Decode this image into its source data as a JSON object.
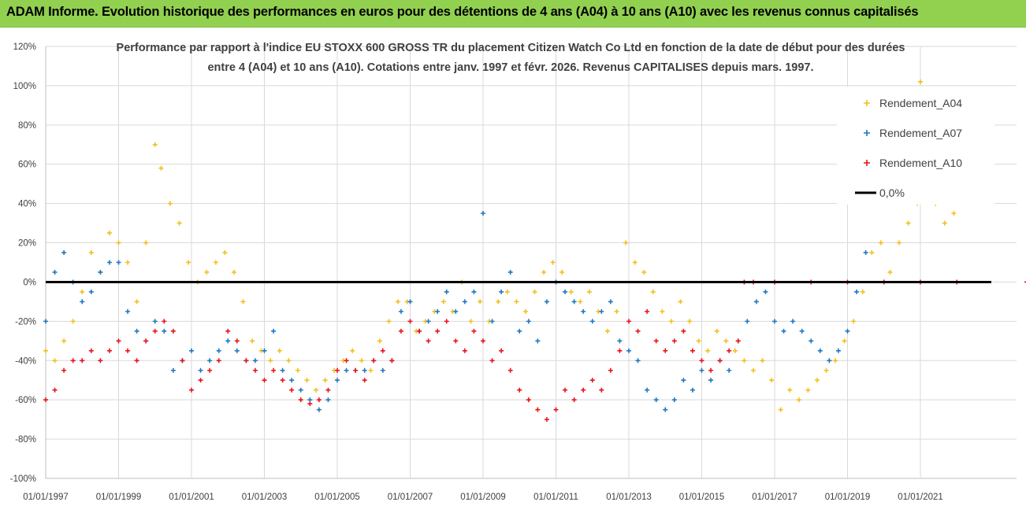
{
  "header": {
    "title": "ADAM Informe. Evolution historique des performances en euros pour des détentions de 4 ans (A04) à 10 ans (A10) avec les revenus connus capitalisés"
  },
  "chart_data": {
    "type": "scatter",
    "title_lines": [
      "Performance par rapport à l'indice EU STOXX 600 GROSS TR  du placement Citizen Watch Co Ltd en fonction de la date de début pour des durées",
      "entre 4 (A04) et 10 ans (A10). Cotations entre janv. 1997 et févr. 2026. Revenus CAPITALISES depuis mars. 1997."
    ],
    "x_ticks": [
      "01/01/1997",
      "01/01/1999",
      "01/01/2001",
      "01/01/2003",
      "01/01/2005",
      "01/01/2007",
      "01/01/2009",
      "01/01/2011",
      "01/01/2013",
      "01/01/2015",
      "01/01/2017",
      "01/01/2019",
      "01/01/2021"
    ],
    "x_range": [
      "1997-01-01",
      "2023-12-31"
    ],
    "y_ticks": [
      "120%",
      "100%",
      "80%",
      "60%",
      "40%",
      "20%",
      "0%",
      "-20%",
      "-40%",
      "-60%",
      "-80%",
      "-100%"
    ],
    "ylim": [
      -100,
      120
    ],
    "legend_position": "top-right",
    "legend": [
      "Rendement_A04",
      "Rendement_A07",
      "Rendement_A10",
      "0,0%"
    ],
    "series": [
      {
        "name": "Rendement_A04",
        "color": "#f2c01d",
        "points": [
          [
            "1997-01",
            -35
          ],
          [
            "1997-04",
            -40
          ],
          [
            "1997-07",
            -30
          ],
          [
            "1997-10",
            -20
          ],
          [
            "1998-01",
            -5
          ],
          [
            "1998-04",
            15
          ],
          [
            "1998-07",
            5
          ],
          [
            "1998-10",
            25
          ],
          [
            "1999-01",
            20
          ],
          [
            "1999-04",
            10
          ],
          [
            "1999-07",
            -10
          ],
          [
            "1999-10",
            20
          ],
          [
            "2000-01",
            70
          ],
          [
            "2000-03",
            58
          ],
          [
            "2000-06",
            40
          ],
          [
            "2000-09",
            30
          ],
          [
            "2000-12",
            10
          ],
          [
            "2001-03",
            0
          ],
          [
            "2001-06",
            5
          ],
          [
            "2001-09",
            10
          ],
          [
            "2001-12",
            15
          ],
          [
            "2002-03",
            5
          ],
          [
            "2002-06",
            -10
          ],
          [
            "2002-09",
            -30
          ],
          [
            "2002-12",
            -35
          ],
          [
            "2003-03",
            -40
          ],
          [
            "2003-06",
            -35
          ],
          [
            "2003-09",
            -40
          ],
          [
            "2003-12",
            -45
          ],
          [
            "2004-03",
            -50
          ],
          [
            "2004-06",
            -55
          ],
          [
            "2004-09",
            -50
          ],
          [
            "2004-12",
            -45
          ],
          [
            "2005-03",
            -40
          ],
          [
            "2005-06",
            -35
          ],
          [
            "2005-09",
            -40
          ],
          [
            "2005-12",
            -45
          ],
          [
            "2006-03",
            -30
          ],
          [
            "2006-06",
            -20
          ],
          [
            "2006-09",
            -10
          ],
          [
            "2006-12",
            -10
          ],
          [
            "2007-03",
            -25
          ],
          [
            "2007-06",
            -20
          ],
          [
            "2007-09",
            -15
          ],
          [
            "2007-12",
            -10
          ],
          [
            "2008-03",
            -15
          ],
          [
            "2008-06",
            0
          ],
          [
            "2008-09",
            -20
          ],
          [
            "2008-12",
            -10
          ],
          [
            "2009-03",
            -20
          ],
          [
            "2009-06",
            -10
          ],
          [
            "2009-09",
            -5
          ],
          [
            "2009-12",
            -10
          ],
          [
            "2010-03",
            -15
          ],
          [
            "2010-06",
            -5
          ],
          [
            "2010-09",
            5
          ],
          [
            "2010-12",
            10
          ],
          [
            "2011-03",
            5
          ],
          [
            "2011-06",
            -5
          ],
          [
            "2011-09",
            -10
          ],
          [
            "2011-12",
            -5
          ],
          [
            "2012-03",
            -15
          ],
          [
            "2012-06",
            -25
          ],
          [
            "2012-09",
            -15
          ],
          [
            "2012-12",
            20
          ],
          [
            "2013-03",
            10
          ],
          [
            "2013-06",
            5
          ],
          [
            "2013-09",
            -5
          ],
          [
            "2013-12",
            -15
          ],
          [
            "2014-03",
            -20
          ],
          [
            "2014-06",
            -10
          ],
          [
            "2014-09",
            -20
          ],
          [
            "2014-12",
            -30
          ],
          [
            "2015-03",
            -35
          ],
          [
            "2015-06",
            -25
          ],
          [
            "2015-09",
            -30
          ],
          [
            "2015-12",
            -35
          ],
          [
            "2016-03",
            -40
          ],
          [
            "2016-06",
            -45
          ],
          [
            "2016-09",
            -40
          ],
          [
            "2016-12",
            -50
          ],
          [
            "2017-03",
            -65
          ],
          [
            "2017-06",
            -55
          ],
          [
            "2017-09",
            -60
          ],
          [
            "2017-12",
            -55
          ],
          [
            "2018-03",
            -50
          ],
          [
            "2018-06",
            -45
          ],
          [
            "2018-09",
            -40
          ],
          [
            "2018-12",
            -30
          ],
          [
            "2019-03",
            -20
          ],
          [
            "2019-06",
            -5
          ],
          [
            "2019-09",
            15
          ],
          [
            "2019-12",
            20
          ],
          [
            "2020-03",
            5
          ],
          [
            "2020-06",
            20
          ],
          [
            "2020-09",
            30
          ],
          [
            "2020-12",
            40
          ],
          [
            "2021-01",
            102
          ],
          [
            "2021-06",
            40
          ],
          [
            "2021-09",
            30
          ],
          [
            "2021-12",
            35
          ]
        ]
      },
      {
        "name": "Rendement_A07",
        "color": "#1f78c1",
        "points": [
          [
            "1997-01",
            -20
          ],
          [
            "1997-04",
            5
          ],
          [
            "1997-07",
            15
          ],
          [
            "1997-10",
            0
          ],
          [
            "1998-01",
            -10
          ],
          [
            "1998-04",
            -5
          ],
          [
            "1998-07",
            5
          ],
          [
            "1998-10",
            10
          ],
          [
            "1999-01",
            10
          ],
          [
            "1999-04",
            -15
          ],
          [
            "1999-07",
            -25
          ],
          [
            "1999-10",
            -30
          ],
          [
            "2000-01",
            -20
          ],
          [
            "2000-04",
            -25
          ],
          [
            "2000-07",
            -45
          ],
          [
            "2000-10",
            -40
          ],
          [
            "2001-01",
            -35
          ],
          [
            "2001-04",
            -45
          ],
          [
            "2001-07",
            -40
          ],
          [
            "2001-10",
            -35
          ],
          [
            "2002-01",
            -30
          ],
          [
            "2002-04",
            -35
          ],
          [
            "2002-07",
            -40
          ],
          [
            "2002-10",
            -40
          ],
          [
            "2003-01",
            -35
          ],
          [
            "2003-04",
            -25
          ],
          [
            "2003-07",
            -45
          ],
          [
            "2003-10",
            -50
          ],
          [
            "2004-01",
            -55
          ],
          [
            "2004-04",
            -60
          ],
          [
            "2004-07",
            -65
          ],
          [
            "2004-10",
            -60
          ],
          [
            "2005-01",
            -50
          ],
          [
            "2005-04",
            -45
          ],
          [
            "2005-07",
            -45
          ],
          [
            "2005-10",
            -45
          ],
          [
            "2006-01",
            -40
          ],
          [
            "2006-04",
            -45
          ],
          [
            "2006-07",
            -40
          ],
          [
            "2006-10",
            -15
          ],
          [
            "2007-01",
            -10
          ],
          [
            "2007-04",
            -25
          ],
          [
            "2007-07",
            -20
          ],
          [
            "2007-10",
            -15
          ],
          [
            "2008-01",
            -5
          ],
          [
            "2008-04",
            -15
          ],
          [
            "2008-07",
            -10
          ],
          [
            "2008-10",
            -5
          ],
          [
            "2009-01",
            35
          ],
          [
            "2009-04",
            -20
          ],
          [
            "2009-07",
            -5
          ],
          [
            "2009-10",
            5
          ],
          [
            "2010-01",
            -25
          ],
          [
            "2010-04",
            -20
          ],
          [
            "2010-07",
            -30
          ],
          [
            "2010-10",
            -10
          ],
          [
            "2011-01",
            0
          ],
          [
            "2011-04",
            -5
          ],
          [
            "2011-07",
            -10
          ],
          [
            "2011-10",
            -15
          ],
          [
            "2012-01",
            -20
          ],
          [
            "2012-04",
            -15
          ],
          [
            "2012-07",
            -10
          ],
          [
            "2012-10",
            -30
          ],
          [
            "2013-01",
            -35
          ],
          [
            "2013-04",
            -40
          ],
          [
            "2013-07",
            -55
          ],
          [
            "2013-10",
            -60
          ],
          [
            "2014-01",
            -65
          ],
          [
            "2014-04",
            -60
          ],
          [
            "2014-07",
            -50
          ],
          [
            "2014-10",
            -55
          ],
          [
            "2015-01",
            -45
          ],
          [
            "2015-04",
            -50
          ],
          [
            "2015-07",
            -40
          ],
          [
            "2015-10",
            -45
          ],
          [
            "2016-01",
            -30
          ],
          [
            "2016-04",
            -20
          ],
          [
            "2016-07",
            -10
          ],
          [
            "2016-10",
            -5
          ],
          [
            "2017-01",
            -20
          ],
          [
            "2017-04",
            -25
          ],
          [
            "2017-07",
            -20
          ],
          [
            "2017-10",
            -25
          ],
          [
            "2018-01",
            -30
          ],
          [
            "2018-04",
            -35
          ],
          [
            "2018-07",
            -40
          ],
          [
            "2018-10",
            -35
          ],
          [
            "2019-01",
            -25
          ],
          [
            "2019-04",
            -5
          ],
          [
            "2019-07",
            15
          ]
        ]
      },
      {
        "name": "Rendement_A10",
        "color": "#e8141b",
        "points": [
          [
            "1997-01",
            -60
          ],
          [
            "1997-04",
            -55
          ],
          [
            "1997-07",
            -45
          ],
          [
            "1997-10",
            -40
          ],
          [
            "1998-01",
            -40
          ],
          [
            "1998-04",
            -35
          ],
          [
            "1998-07",
            -40
          ],
          [
            "1998-10",
            -35
          ],
          [
            "1999-01",
            -30
          ],
          [
            "1999-04",
            -35
          ],
          [
            "1999-07",
            -40
          ],
          [
            "1999-10",
            -30
          ],
          [
            "2000-01",
            -25
          ],
          [
            "2000-04",
            -20
          ],
          [
            "2000-07",
            -25
          ],
          [
            "2000-10",
            -40
          ],
          [
            "2001-01",
            -55
          ],
          [
            "2001-04",
            -50
          ],
          [
            "2001-07",
            -45
          ],
          [
            "2001-10",
            -40
          ],
          [
            "2002-01",
            -25
          ],
          [
            "2002-04",
            -30
          ],
          [
            "2002-07",
            -40
          ],
          [
            "2002-10",
            -45
          ],
          [
            "2003-01",
            -50
          ],
          [
            "2003-04",
            -45
          ],
          [
            "2003-07",
            -50
          ],
          [
            "2003-10",
            -55
          ],
          [
            "2004-01",
            -60
          ],
          [
            "2004-04",
            -62
          ],
          [
            "2004-07",
            -60
          ],
          [
            "2004-10",
            -55
          ],
          [
            "2005-01",
            -45
          ],
          [
            "2005-04",
            -40
          ],
          [
            "2005-07",
            -45
          ],
          [
            "2005-10",
            -50
          ],
          [
            "2006-01",
            -40
          ],
          [
            "2006-04",
            -35
          ],
          [
            "2006-07",
            -40
          ],
          [
            "2006-10",
            -25
          ],
          [
            "2007-01",
            -20
          ],
          [
            "2007-04",
            -25
          ],
          [
            "2007-07",
            -30
          ],
          [
            "2007-10",
            -25
          ],
          [
            "2008-01",
            -20
          ],
          [
            "2008-04",
            -30
          ],
          [
            "2008-07",
            -35
          ],
          [
            "2008-10",
            -25
          ],
          [
            "2009-01",
            -30
          ],
          [
            "2009-04",
            -40
          ],
          [
            "2009-07",
            -35
          ],
          [
            "2009-10",
            -45
          ],
          [
            "2010-01",
            -55
          ],
          [
            "2010-04",
            -60
          ],
          [
            "2010-07",
            -65
          ],
          [
            "2010-10",
            -70
          ],
          [
            "2011-01",
            -65
          ],
          [
            "2011-04",
            -55
          ],
          [
            "2011-07",
            -60
          ],
          [
            "2011-10",
            -55
          ],
          [
            "2012-01",
            -50
          ],
          [
            "2012-04",
            -55
          ],
          [
            "2012-07",
            -45
          ],
          [
            "2012-10",
            -35
          ],
          [
            "2013-01",
            -20
          ],
          [
            "2013-04",
            -25
          ],
          [
            "2013-07",
            -15
          ],
          [
            "2013-10",
            -30
          ],
          [
            "2014-01",
            -35
          ],
          [
            "2014-04",
            -30
          ],
          [
            "2014-07",
            -25
          ],
          [
            "2014-10",
            -35
          ],
          [
            "2015-01",
            -40
          ],
          [
            "2015-04",
            -45
          ],
          [
            "2015-07",
            -40
          ],
          [
            "2015-10",
            -35
          ],
          [
            "2016-01",
            -30
          ],
          [
            "2016-03",
            0
          ],
          [
            "2016-06",
            0
          ],
          [
            "2017-01",
            0
          ],
          [
            "2018-01",
            0
          ],
          [
            "2019-01",
            0
          ],
          [
            "2020-01",
            0
          ],
          [
            "2021-01",
            0
          ],
          [
            "2022-01",
            0
          ],
          [
            "2023-12",
            0
          ]
        ]
      }
    ],
    "reference_line": {
      "label": "0,0%",
      "value": 0,
      "color": "#000000"
    }
  }
}
